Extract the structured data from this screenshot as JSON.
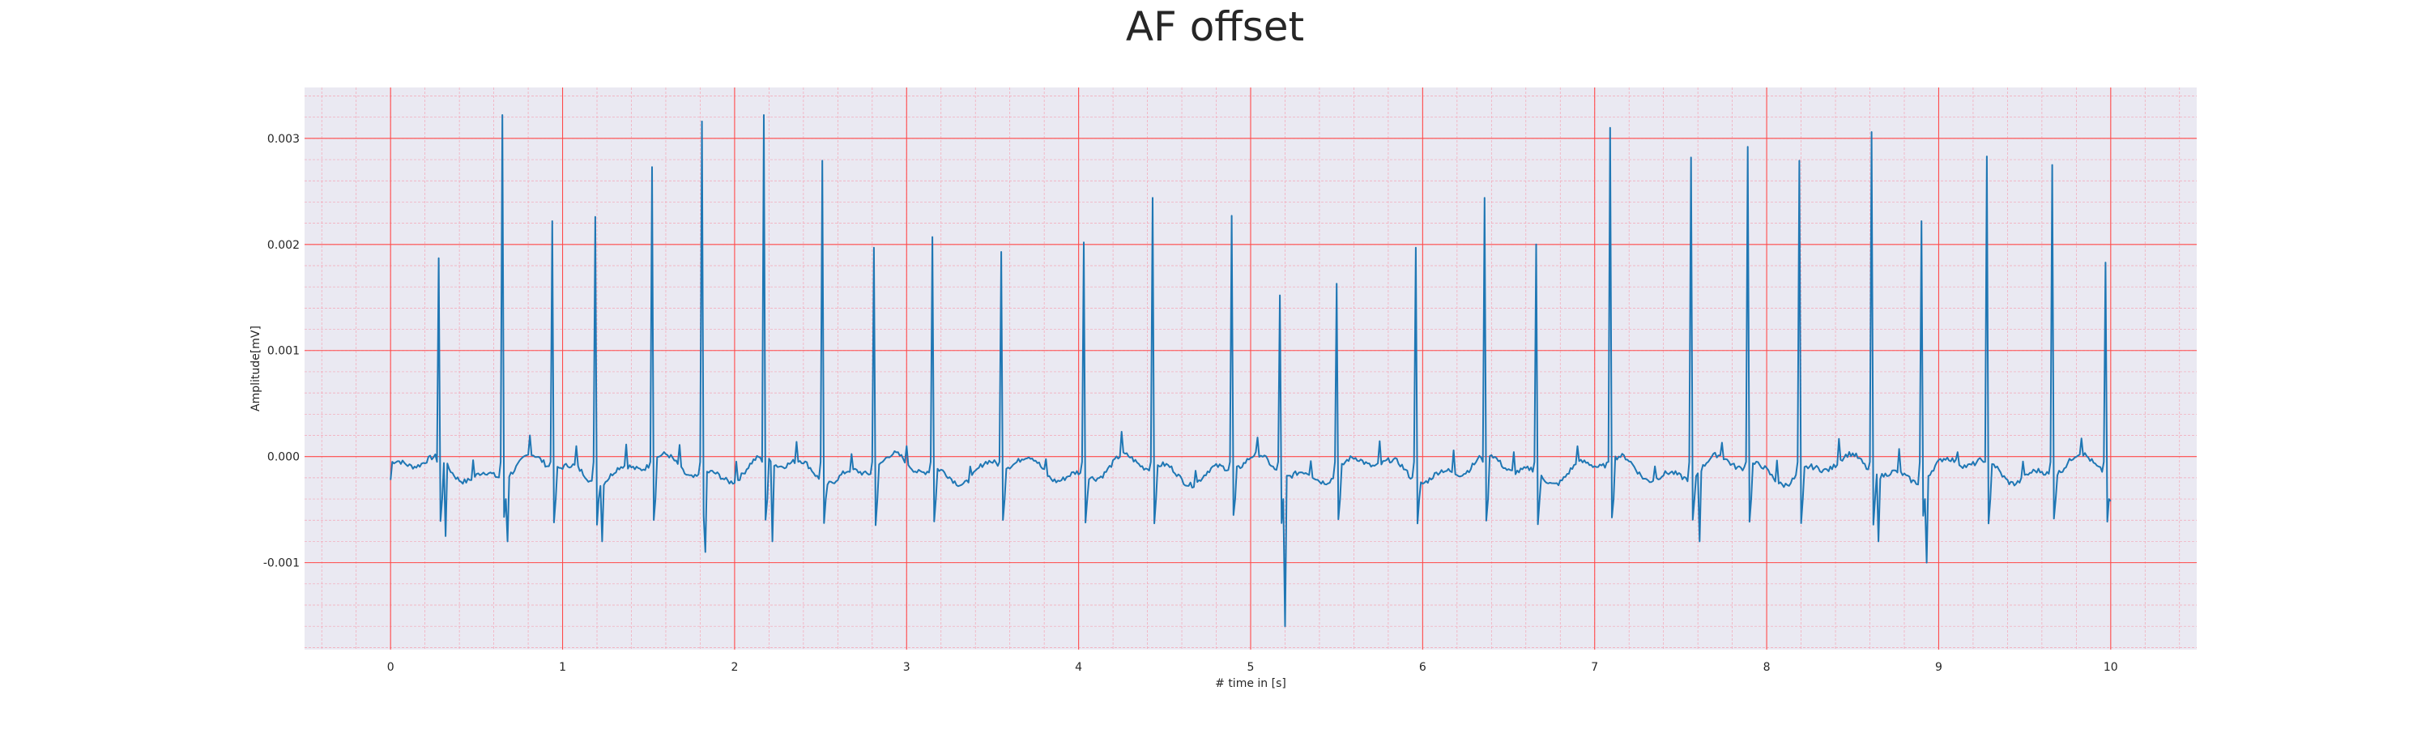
{
  "chart_data": {
    "type": "line",
    "title": "AF offset",
    "xlabel": "# time in [s]",
    "ylabel": "Amplitude[mV]",
    "xlim": [
      -0.5,
      10.5
    ],
    "ylim": [
      -0.00182,
      0.00348
    ],
    "x_ticks": [
      "0",
      "1",
      "2",
      "3",
      "4",
      "5",
      "6",
      "7",
      "8",
      "9",
      "10"
    ],
    "y_ticks": [
      "-0.001",
      "0.000",
      "0.001",
      "0.002",
      "0.003"
    ],
    "grid": {
      "major": true,
      "minor": true
    },
    "colors": {
      "line": "#1f77b4",
      "plot_bg": "#eae9f2",
      "major_grid": "#ff4a4a",
      "minor_grid": "#f4a5b5"
    },
    "sample_interval_s": 0.01,
    "r_peaks": [
      {
        "t": 0.28,
        "amp": 0.00187
      },
      {
        "t": 0.65,
        "amp": 0.00322
      },
      {
        "t": 0.94,
        "amp": 0.00222
      },
      {
        "t": 1.19,
        "amp": 0.00226
      },
      {
        "t": 1.52,
        "amp": 0.00273
      },
      {
        "t": 1.81,
        "amp": 0.00316
      },
      {
        "t": 2.17,
        "amp": 0.00322
      },
      {
        "t": 2.51,
        "amp": 0.00279
      },
      {
        "t": 2.81,
        "amp": 0.00197
      },
      {
        "t": 3.15,
        "amp": 0.00207
      },
      {
        "t": 3.55,
        "amp": 0.00193
      },
      {
        "t": 4.03,
        "amp": 0.00202
      },
      {
        "t": 4.43,
        "amp": 0.00244
      },
      {
        "t": 4.89,
        "amp": 0.00227
      },
      {
        "t": 5.17,
        "amp": 0.00152
      },
      {
        "t": 5.5,
        "amp": 0.00163
      },
      {
        "t": 5.96,
        "amp": 0.00197
      },
      {
        "t": 6.36,
        "amp": 0.00244
      },
      {
        "t": 6.66,
        "amp": 0.002
      },
      {
        "t": 7.09,
        "amp": 0.0031
      },
      {
        "t": 7.56,
        "amp": 0.00282
      },
      {
        "t": 7.89,
        "amp": 0.00292
      },
      {
        "t": 8.19,
        "amp": 0.00279
      },
      {
        "t": 8.61,
        "amp": 0.00306
      },
      {
        "t": 8.9,
        "amp": 0.00222
      },
      {
        "t": 9.28,
        "amp": 0.00283
      },
      {
        "t": 9.66,
        "amp": 0.00275
      },
      {
        "t": 9.97,
        "amp": 0.00183
      }
    ],
    "troughs": [
      {
        "t": 5.2,
        "amp": -0.0016
      },
      {
        "t": 8.93,
        "amp": -0.001
      },
      {
        "t": 1.83,
        "amp": -0.0009
      },
      {
        "t": 0.68,
        "amp": -0.0008
      },
      {
        "t": 2.22,
        "amp": -0.0008
      },
      {
        "t": 1.23,
        "amp": -0.0008
      },
      {
        "t": 8.65,
        "amp": -0.0008
      },
      {
        "t": 7.61,
        "amp": -0.0008
      },
      {
        "t": 0.32,
        "amp": -0.00075
      }
    ]
  }
}
